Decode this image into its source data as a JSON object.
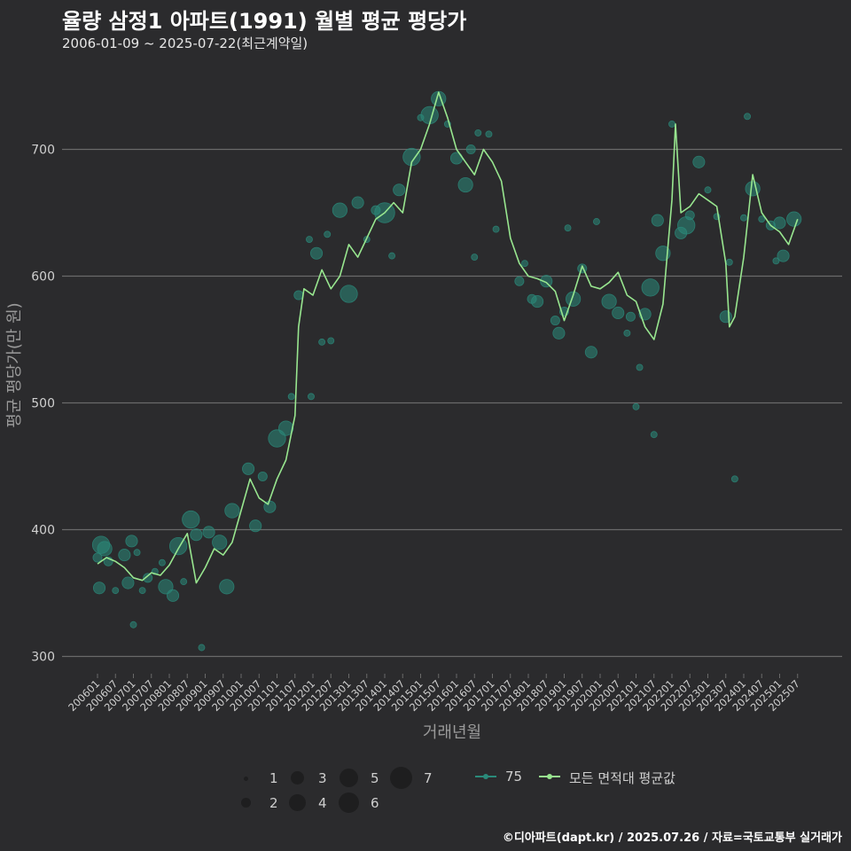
{
  "title": "율량 삼정1 아파트(1991) 월별 평균 평당가",
  "subtitle": "2006-01-09 ~ 2025-07-22(최근계약일)",
  "footer": "©디아파트(dapt.kr) / 2025.07.26 / 자료=국토교통부 실거래가",
  "colors": {
    "background": "#2b2b2d",
    "grid": "#6a6a6a",
    "line": "#98e68f",
    "points": "#2a8a7a",
    "text": "#cfcfcf"
  },
  "legend": {
    "sizes": [
      "1",
      "2",
      "3",
      "4",
      "5",
      "6",
      "7"
    ],
    "series_75": "75",
    "series_avg": "모든 면적대 평균값"
  },
  "chart_data": {
    "type": "line",
    "xlabel": "거래년월",
    "ylabel": "평균 평당가(만 원)",
    "ylim": [
      290,
      760
    ],
    "yticks": [
      300,
      400,
      500,
      600,
      700
    ],
    "xticks": [
      "200601",
      "200607",
      "200701",
      "200707",
      "200801",
      "200807",
      "200901",
      "200907",
      "201001",
      "201007",
      "201101",
      "201107",
      "201201",
      "201207",
      "201301",
      "201307",
      "201401",
      "201407",
      "201501",
      "201507",
      "201601",
      "201607",
      "201701",
      "201707",
      "201801",
      "201807",
      "201901",
      "201907",
      "202001",
      "202007",
      "202101",
      "202107",
      "202201",
      "202207",
      "202301",
      "202307",
      "202401",
      "202407",
      "202501",
      "202507"
    ],
    "series": [
      {
        "name": "모든 면적대 평균값",
        "type": "line",
        "x": [
          2006.0,
          2006.25,
          2006.5,
          2006.75,
          2007.0,
          2007.25,
          2007.5,
          2007.75,
          2008.0,
          2008.25,
          2008.5,
          2008.75,
          2009.0,
          2009.25,
          2009.5,
          2009.75,
          2010.0,
          2010.25,
          2010.5,
          2010.75,
          2011.0,
          2011.25,
          2011.5,
          2011.6,
          2011.75,
          2012.0,
          2012.25,
          2012.5,
          2012.75,
          2013.0,
          2013.25,
          2013.5,
          2013.75,
          2014.0,
          2014.25,
          2014.5,
          2014.75,
          2015.0,
          2015.25,
          2015.5,
          2015.75,
          2016.0,
          2016.25,
          2016.5,
          2016.75,
          2017.0,
          2017.25,
          2017.5,
          2017.75,
          2018.0,
          2018.25,
          2018.5,
          2018.75,
          2019.0,
          2019.25,
          2019.5,
          2019.75,
          2020.0,
          2020.25,
          2020.5,
          2020.75,
          2021.0,
          2021.25,
          2021.5,
          2021.75,
          2022.0,
          2022.1,
          2022.25,
          2022.5,
          2022.75,
          2023.0,
          2023.25,
          2023.5,
          2023.6,
          2023.75,
          2024.0,
          2024.25,
          2024.5,
          2024.75,
          2025.0,
          2025.25,
          2025.5
        ],
        "values": [
          373,
          378,
          375,
          370,
          362,
          360,
          366,
          364,
          372,
          385,
          397,
          358,
          370,
          385,
          380,
          390,
          415,
          440,
          425,
          420,
          440,
          455,
          490,
          560,
          590,
          585,
          605,
          590,
          600,
          625,
          615,
          630,
          645,
          650,
          658,
          650,
          690,
          700,
          720,
          745,
          725,
          700,
          690,
          680,
          700,
          690,
          675,
          630,
          610,
          600,
          598,
          595,
          588,
          565,
          585,
          608,
          592,
          590,
          595,
          603,
          585,
          580,
          560,
          550,
          578,
          660,
          720,
          650,
          655,
          665,
          660,
          655,
          610,
          560,
          568,
          615,
          680,
          650,
          640,
          635,
          625,
          645
        ]
      },
      {
        "name": "75",
        "type": "scatter",
        "points": [
          {
            "x": 2006.0,
            "y": 378,
            "size": 2
          },
          {
            "x": 2006.05,
            "y": 354,
            "size": 3
          },
          {
            "x": 2006.1,
            "y": 388,
            "size": 5
          },
          {
            "x": 2006.2,
            "y": 385,
            "size": 4
          },
          {
            "x": 2006.3,
            "y": 375,
            "size": 2
          },
          {
            "x": 2006.5,
            "y": 352,
            "size": 1
          },
          {
            "x": 2006.75,
            "y": 380,
            "size": 3
          },
          {
            "x": 2006.85,
            "y": 358,
            "size": 3
          },
          {
            "x": 2006.95,
            "y": 391,
            "size": 3
          },
          {
            "x": 2007.0,
            "y": 325,
            "size": 1
          },
          {
            "x": 2007.1,
            "y": 382,
            "size": 1
          },
          {
            "x": 2007.25,
            "y": 352,
            "size": 1
          },
          {
            "x": 2007.4,
            "y": 362,
            "size": 2
          },
          {
            "x": 2007.6,
            "y": 367,
            "size": 1
          },
          {
            "x": 2007.8,
            "y": 374,
            "size": 1
          },
          {
            "x": 2007.9,
            "y": 355,
            "size": 4
          },
          {
            "x": 2008.1,
            "y": 348,
            "size": 3
          },
          {
            "x": 2008.25,
            "y": 387,
            "size": 5
          },
          {
            "x": 2008.4,
            "y": 359,
            "size": 1
          },
          {
            "x": 2008.6,
            "y": 408,
            "size": 5
          },
          {
            "x": 2008.75,
            "y": 396,
            "size": 3
          },
          {
            "x": 2008.9,
            "y": 307,
            "size": 1
          },
          {
            "x": 2009.1,
            "y": 398,
            "size": 3
          },
          {
            "x": 2009.4,
            "y": 390,
            "size": 4
          },
          {
            "x": 2009.6,
            "y": 355,
            "size": 4
          },
          {
            "x": 2009.75,
            "y": 415,
            "size": 4
          },
          {
            "x": 2010.2,
            "y": 448,
            "size": 3
          },
          {
            "x": 2010.4,
            "y": 403,
            "size": 3
          },
          {
            "x": 2010.6,
            "y": 442,
            "size": 2
          },
          {
            "x": 2010.8,
            "y": 418,
            "size": 3
          },
          {
            "x": 2011.0,
            "y": 472,
            "size": 5
          },
          {
            "x": 2011.25,
            "y": 480,
            "size": 4
          },
          {
            "x": 2011.4,
            "y": 505,
            "size": 1
          },
          {
            "x": 2011.6,
            "y": 585,
            "size": 2
          },
          {
            "x": 2011.9,
            "y": 629,
            "size": 1
          },
          {
            "x": 2011.95,
            "y": 505,
            "size": 1
          },
          {
            "x": 2012.1,
            "y": 618,
            "size": 3
          },
          {
            "x": 2012.25,
            "y": 548,
            "size": 1
          },
          {
            "x": 2012.4,
            "y": 633,
            "size": 1
          },
          {
            "x": 2012.5,
            "y": 549,
            "size": 1
          },
          {
            "x": 2012.75,
            "y": 652,
            "size": 4
          },
          {
            "x": 2013.0,
            "y": 586,
            "size": 5
          },
          {
            "x": 2013.25,
            "y": 658,
            "size": 3
          },
          {
            "x": 2013.5,
            "y": 629,
            "size": 1
          },
          {
            "x": 2013.75,
            "y": 652,
            "size": 2
          },
          {
            "x": 2014.0,
            "y": 650,
            "size": 6
          },
          {
            "x": 2014.2,
            "y": 616,
            "size": 1
          },
          {
            "x": 2014.4,
            "y": 668,
            "size": 3
          },
          {
            "x": 2014.75,
            "y": 694,
            "size": 5
          },
          {
            "x": 2015.0,
            "y": 725,
            "size": 1
          },
          {
            "x": 2015.25,
            "y": 727,
            "size": 5
          },
          {
            "x": 2015.5,
            "y": 740,
            "size": 4
          },
          {
            "x": 2015.75,
            "y": 720,
            "size": 1
          },
          {
            "x": 2016.0,
            "y": 693,
            "size": 3
          },
          {
            "x": 2016.25,
            "y": 672,
            "size": 4
          },
          {
            "x": 2016.4,
            "y": 700,
            "size": 2
          },
          {
            "x": 2016.5,
            "y": 615,
            "size": 1
          },
          {
            "x": 2016.6,
            "y": 713,
            "size": 1
          },
          {
            "x": 2016.9,
            "y": 712,
            "size": 1
          },
          {
            "x": 2017.1,
            "y": 637,
            "size": 1
          },
          {
            "x": 2017.75,
            "y": 596,
            "size": 2
          },
          {
            "x": 2017.9,
            "y": 610,
            "size": 1
          },
          {
            "x": 2018.1,
            "y": 582,
            "size": 2
          },
          {
            "x": 2018.25,
            "y": 580,
            "size": 3
          },
          {
            "x": 2018.5,
            "y": 596,
            "size": 3
          },
          {
            "x": 2018.75,
            "y": 565,
            "size": 2
          },
          {
            "x": 2018.85,
            "y": 555,
            "size": 3
          },
          {
            "x": 2019.0,
            "y": 572,
            "size": 2
          },
          {
            "x": 2019.1,
            "y": 638,
            "size": 1
          },
          {
            "x": 2019.25,
            "y": 582,
            "size": 4
          },
          {
            "x": 2019.5,
            "y": 606,
            "size": 2
          },
          {
            "x": 2019.75,
            "y": 540,
            "size": 3
          },
          {
            "x": 2019.9,
            "y": 643,
            "size": 1
          },
          {
            "x": 2020.25,
            "y": 580,
            "size": 4
          },
          {
            "x": 2020.5,
            "y": 571,
            "size": 3
          },
          {
            "x": 2020.75,
            "y": 555,
            "size": 1
          },
          {
            "x": 2020.85,
            "y": 568,
            "size": 2
          },
          {
            "x": 2021.0,
            "y": 497,
            "size": 1
          },
          {
            "x": 2021.1,
            "y": 528,
            "size": 1
          },
          {
            "x": 2021.25,
            "y": 570,
            "size": 3
          },
          {
            "x": 2021.4,
            "y": 591,
            "size": 5
          },
          {
            "x": 2021.5,
            "y": 475,
            "size": 1
          },
          {
            "x": 2021.6,
            "y": 644,
            "size": 3
          },
          {
            "x": 2021.75,
            "y": 618,
            "size": 4
          },
          {
            "x": 2022.0,
            "y": 720,
            "size": 1
          },
          {
            "x": 2022.25,
            "y": 634,
            "size": 3
          },
          {
            "x": 2022.4,
            "y": 640,
            "size": 5
          },
          {
            "x": 2022.5,
            "y": 648,
            "size": 2
          },
          {
            "x": 2022.75,
            "y": 690,
            "size": 3
          },
          {
            "x": 2023.0,
            "y": 668,
            "size": 1
          },
          {
            "x": 2023.25,
            "y": 647,
            "size": 1
          },
          {
            "x": 2023.5,
            "y": 568,
            "size": 3
          },
          {
            "x": 2023.6,
            "y": 611,
            "size": 1
          },
          {
            "x": 2023.75,
            "y": 440,
            "size": 1
          },
          {
            "x": 2024.0,
            "y": 646,
            "size": 1
          },
          {
            "x": 2024.1,
            "y": 726,
            "size": 1
          },
          {
            "x": 2024.25,
            "y": 669,
            "size": 4
          },
          {
            "x": 2024.5,
            "y": 645,
            "size": 1
          },
          {
            "x": 2024.75,
            "y": 640,
            "size": 2
          },
          {
            "x": 2024.9,
            "y": 612,
            "size": 1
          },
          {
            "x": 2025.0,
            "y": 642,
            "size": 3
          },
          {
            "x": 2025.1,
            "y": 616,
            "size": 3
          },
          {
            "x": 2025.4,
            "y": 645,
            "size": 4
          }
        ]
      }
    ]
  }
}
